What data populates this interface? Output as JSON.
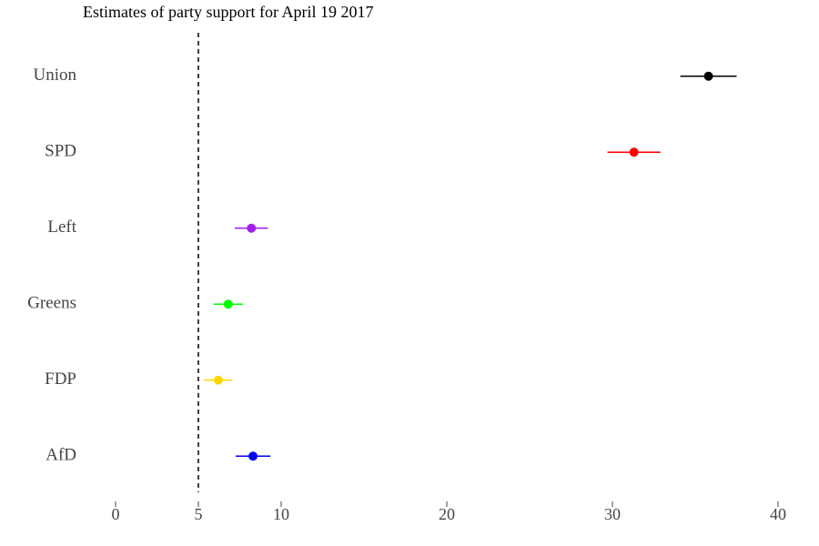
{
  "chart_data": {
    "type": "dotplot",
    "title": "Estimates of party support for April 19 2017",
    "categories": [
      "Union",
      "SPD",
      "Left",
      "Greens",
      "FDP",
      "AfD"
    ],
    "values": [
      35.8,
      31.3,
      8.2,
      6.8,
      6.2,
      8.3
    ],
    "errors": [
      1.7,
      1.6,
      1.0,
      0.9,
      0.85,
      1.05
    ],
    "colors": [
      "#000000",
      "#ff0000",
      "#a020f0",
      "#00ff00",
      "#ffd700",
      "#0000ff"
    ],
    "xlim": [
      0,
      40
    ],
    "xticks": [
      0,
      5,
      10,
      20,
      30,
      40
    ],
    "vline": 5
  }
}
